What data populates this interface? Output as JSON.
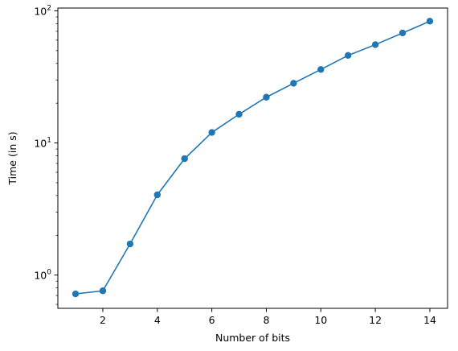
{
  "chart_data": {
    "type": "line",
    "title": "",
    "xlabel": "Number of bits",
    "ylabel": "Time (in s)",
    "yscale": "log",
    "xlim": [
      0.35,
      14.65
    ],
    "ylim": [
      0.56,
      105
    ],
    "x_ticks": [
      2,
      4,
      6,
      8,
      10,
      12,
      14
    ],
    "x_tick_labels": [
      "2",
      "4",
      "6",
      "8",
      "10",
      "12",
      "14"
    ],
    "y_ticks": [
      {
        "value": 1,
        "base": "10",
        "exp": "0"
      },
      {
        "value": 10,
        "base": "10",
        "exp": "1"
      },
      {
        "value": 100,
        "base": "10",
        "exp": "2"
      }
    ],
    "series": [
      {
        "name": "time",
        "color": "#1f77b4",
        "marker": "circle",
        "x": [
          1,
          2,
          3,
          4,
          5,
          6,
          7,
          8,
          9,
          10,
          11,
          12,
          13,
          14
        ],
        "values": [
          0.72,
          0.76,
          1.72,
          4.05,
          7.6,
          12.0,
          16.5,
          22.2,
          28.3,
          36.0,
          46.0,
          55.5,
          68.0,
          83.5
        ]
      }
    ]
  }
}
